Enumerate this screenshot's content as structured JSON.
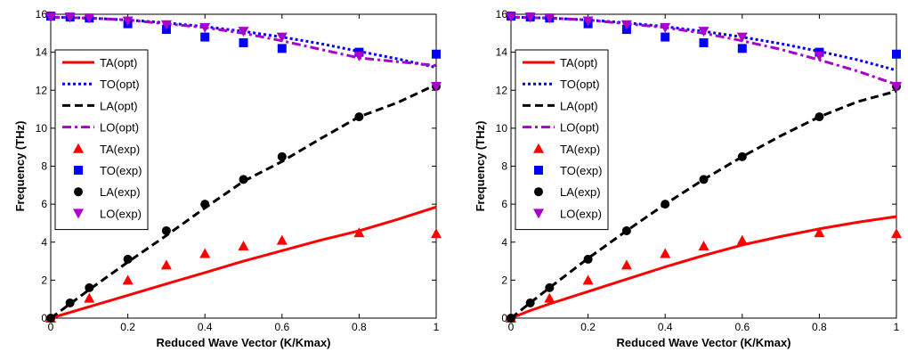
{
  "chart_data": [
    {
      "type": "line",
      "xlabel": "Reduced Wave Vector (K/Kmax)",
      "ylabel": "Frequency (THz)",
      "xlim": [
        0,
        1
      ],
      "ylim": [
        0,
        16
      ],
      "xticks": [
        "0",
        "0.2",
        "0.4",
        "0.6",
        "0.8",
        "1"
      ],
      "yticks": [
        "0",
        "2",
        "4",
        "6",
        "8",
        "10",
        "12",
        "14",
        "16"
      ],
      "grid": false,
      "legend_position": "left",
      "series": [
        {
          "name": "TA(opt)",
          "kind": "line",
          "style": "solid",
          "color": "#ff0000",
          "x": [
            0,
            0.05,
            0.1,
            0.2,
            0.3,
            0.4,
            0.5,
            0.6,
            0.7,
            0.8,
            0.9,
            1.0
          ],
          "y": [
            0,
            0.3,
            0.6,
            1.2,
            1.8,
            2.4,
            3.0,
            3.55,
            4.1,
            4.6,
            5.2,
            5.85
          ]
        },
        {
          "name": "TO(opt)",
          "kind": "line",
          "style": "dotted",
          "color": "#0000ff",
          "x": [
            0,
            0.1,
            0.2,
            0.3,
            0.4,
            0.5,
            0.6,
            0.7,
            0.8,
            0.9,
            1.0
          ],
          "y": [
            15.85,
            15.8,
            15.7,
            15.55,
            15.35,
            15.1,
            14.8,
            14.45,
            14.05,
            13.65,
            13.2
          ]
        },
        {
          "name": "LA(opt)",
          "kind": "line",
          "style": "dashed",
          "color": "#000000",
          "x": [
            0,
            0.05,
            0.1,
            0.2,
            0.3,
            0.4,
            0.5,
            0.6,
            0.7,
            0.8,
            0.9,
            1.0
          ],
          "y": [
            0,
            0.75,
            1.5,
            2.95,
            4.35,
            5.8,
            7.2,
            8.25,
            9.45,
            10.6,
            11.35,
            12.3
          ]
        },
        {
          "name": "LO(opt)",
          "kind": "line",
          "style": "dashdot",
          "color": "#aa00cc",
          "x": [
            0,
            0.1,
            0.2,
            0.3,
            0.4,
            0.5,
            0.6,
            0.7,
            0.8,
            0.9,
            1.0
          ],
          "y": [
            15.85,
            15.8,
            15.7,
            15.5,
            15.3,
            15.0,
            14.6,
            14.15,
            13.7,
            13.5,
            13.3
          ]
        },
        {
          "name": "TA(exp)",
          "kind": "marker",
          "marker": "triangle-up",
          "color": "#ff0000",
          "x": [
            0,
            0.1,
            0.2,
            0.3,
            0.4,
            0.5,
            0.6,
            0.8,
            1.0
          ],
          "y": [
            0,
            1.05,
            2.0,
            2.8,
            3.4,
            3.8,
            4.1,
            4.5,
            4.45
          ]
        },
        {
          "name": "TO(exp)",
          "kind": "marker",
          "marker": "square",
          "color": "#0000ff",
          "x": [
            0,
            0.05,
            0.1,
            0.2,
            0.3,
            0.4,
            0.5,
            0.6,
            0.8,
            1.0
          ],
          "y": [
            15.9,
            15.85,
            15.8,
            15.5,
            15.2,
            14.8,
            14.5,
            14.2,
            14.0,
            13.9
          ]
        },
        {
          "name": "LA(exp)",
          "kind": "marker",
          "marker": "circle",
          "color": "#000000",
          "x": [
            0,
            0.05,
            0.1,
            0.2,
            0.3,
            0.4,
            0.5,
            0.6,
            0.8,
            1.0
          ],
          "y": [
            0,
            0.8,
            1.6,
            3.1,
            4.6,
            6.0,
            7.3,
            8.5,
            10.6,
            12.2
          ]
        },
        {
          "name": "LO(exp)",
          "kind": "marker",
          "marker": "triangle-down",
          "color": "#aa00cc",
          "x": [
            0,
            0.05,
            0.1,
            0.2,
            0.3,
            0.4,
            0.5,
            0.6,
            0.8,
            1.0
          ],
          "y": [
            15.85,
            15.85,
            15.8,
            15.65,
            15.45,
            15.3,
            15.1,
            14.8,
            13.8,
            12.2
          ]
        }
      ]
    },
    {
      "type": "line",
      "xlabel": "Reduced Wave Vector (K/Kmax)",
      "ylabel": "Frequency (THz)",
      "xlim": [
        0,
        1
      ],
      "ylim": [
        0,
        16
      ],
      "xticks": [
        "0",
        "0.2",
        "0.4",
        "0.6",
        "0.8",
        "1"
      ],
      "yticks": [
        "0",
        "2",
        "4",
        "6",
        "8",
        "10",
        "12",
        "14",
        "16"
      ],
      "grid": false,
      "legend_position": "left",
      "series": [
        {
          "name": "TA(opt)",
          "kind": "line",
          "style": "solid",
          "color": "#ff0000",
          "x": [
            0,
            0.05,
            0.1,
            0.2,
            0.3,
            0.4,
            0.5,
            0.6,
            0.7,
            0.8,
            0.9,
            1.0
          ],
          "y": [
            0,
            0.4,
            0.75,
            1.4,
            2.05,
            2.7,
            3.3,
            3.85,
            4.3,
            4.7,
            5.05,
            5.35
          ]
        },
        {
          "name": "TO(opt)",
          "kind": "line",
          "style": "dotted",
          "color": "#0000ff",
          "x": [
            0,
            0.1,
            0.2,
            0.3,
            0.4,
            0.5,
            0.6,
            0.7,
            0.8,
            0.9,
            1.0
          ],
          "y": [
            15.85,
            15.8,
            15.7,
            15.55,
            15.35,
            15.1,
            14.8,
            14.45,
            14.05,
            13.6,
            13.05
          ]
        },
        {
          "name": "LA(opt)",
          "kind": "line",
          "style": "dashed",
          "color": "#000000",
          "x": [
            0,
            0.05,
            0.1,
            0.2,
            0.3,
            0.4,
            0.5,
            0.6,
            0.7,
            0.8,
            0.9,
            1.0
          ],
          "y": [
            0,
            0.8,
            1.6,
            3.15,
            4.6,
            6.0,
            7.3,
            8.5,
            9.6,
            10.6,
            11.4,
            11.95
          ]
        },
        {
          "name": "LO(opt)",
          "kind": "line",
          "style": "dashdot",
          "color": "#aa00cc",
          "x": [
            0,
            0.1,
            0.2,
            0.3,
            0.4,
            0.5,
            0.6,
            0.7,
            0.8,
            0.9,
            1.0
          ],
          "y": [
            15.85,
            15.8,
            15.7,
            15.5,
            15.3,
            15.0,
            14.6,
            14.15,
            13.6,
            13.0,
            12.3
          ]
        },
        {
          "name": "TA(exp)",
          "kind": "marker",
          "marker": "triangle-up",
          "color": "#ff0000",
          "x": [
            0,
            0.1,
            0.2,
            0.3,
            0.4,
            0.5,
            0.6,
            0.8,
            1.0
          ],
          "y": [
            0,
            1.05,
            2.0,
            2.8,
            3.4,
            3.8,
            4.1,
            4.5,
            4.45
          ]
        },
        {
          "name": "TO(exp)",
          "kind": "marker",
          "marker": "square",
          "color": "#0000ff",
          "x": [
            0,
            0.05,
            0.1,
            0.2,
            0.3,
            0.4,
            0.5,
            0.6,
            0.8,
            1.0
          ],
          "y": [
            15.9,
            15.85,
            15.8,
            15.5,
            15.2,
            14.8,
            14.5,
            14.2,
            14.0,
            13.9
          ]
        },
        {
          "name": "LA(exp)",
          "kind": "marker",
          "marker": "circle",
          "color": "#000000",
          "x": [
            0,
            0.05,
            0.1,
            0.2,
            0.3,
            0.4,
            0.5,
            0.6,
            0.8,
            1.0
          ],
          "y": [
            0,
            0.8,
            1.6,
            3.1,
            4.6,
            6.0,
            7.3,
            8.5,
            10.6,
            12.2
          ]
        },
        {
          "name": "LO(exp)",
          "kind": "marker",
          "marker": "triangle-down",
          "color": "#aa00cc",
          "x": [
            0,
            0.05,
            0.1,
            0.2,
            0.3,
            0.4,
            0.5,
            0.6,
            0.8,
            1.0
          ],
          "y": [
            15.85,
            15.85,
            15.8,
            15.65,
            15.45,
            15.3,
            15.1,
            14.8,
            13.8,
            12.2
          ]
        }
      ]
    }
  ]
}
